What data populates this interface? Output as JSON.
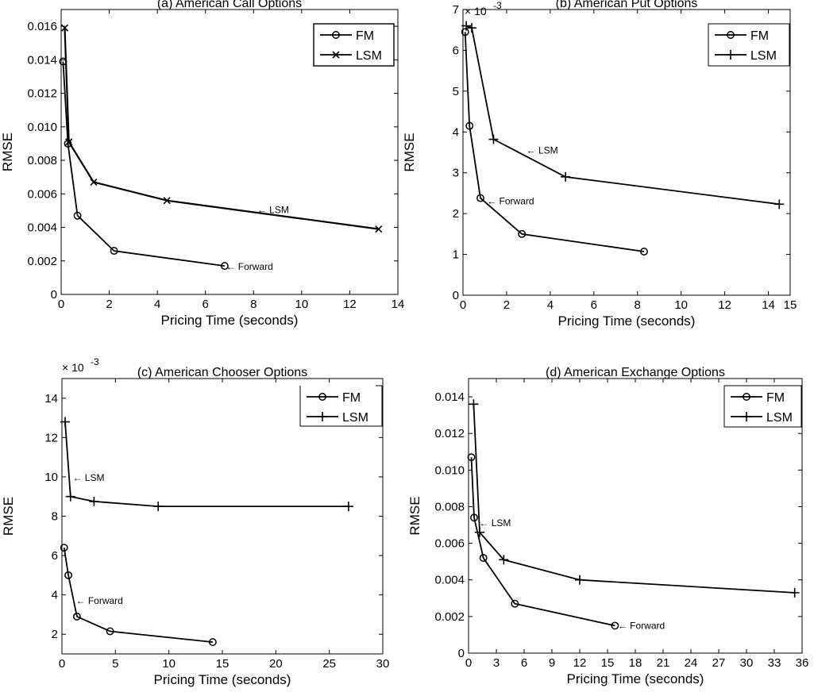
{
  "chart_data": [
    {
      "type": "line",
      "title": "(a) American Call Options",
      "xlabel": "Pricing Time (seconds)",
      "ylabel": "RMSE",
      "xlim": [
        0,
        14
      ],
      "ylim": [
        0,
        0.017
      ],
      "xticks": [
        "0",
        "2",
        "4",
        "6",
        "8",
        "10",
        "12",
        "14"
      ],
      "yticks": [
        "0",
        "0.002",
        "0.004",
        "0.006",
        "0.008",
        "0.010",
        "0.012",
        "0.014",
        "0.016"
      ],
      "legend_position": "top-right",
      "series": [
        {
          "name": "FM",
          "marker": "circle",
          "x": [
            0.08,
            0.28,
            0.68,
            2.2,
            6.8
          ],
          "y": [
            0.0139,
            0.009,
            0.0047,
            0.0026,
            0.0017
          ]
        },
        {
          "name": "LSM",
          "marker": "x",
          "x": [
            0.15,
            0.32,
            1.35,
            4.4,
            13.2
          ],
          "y": [
            0.0159,
            0.0091,
            0.0067,
            0.0056,
            0.0039
          ]
        }
      ],
      "annotations": [
        {
          "text": "← LSM",
          "x": 8.15,
          "y": 0.00505
        },
        {
          "text": "← Forward",
          "x": 6.85,
          "y": 0.00165
        }
      ]
    },
    {
      "type": "line",
      "title": "(b) American Put Options",
      "xlabel": "Pricing Time (seconds)",
      "ylabel": "RMSE",
      "exponent_label": "× 10",
      "exponent_power": "-3",
      "xlim": [
        0,
        15
      ],
      "ylim": [
        0,
        7
      ],
      "xticks": [
        "0",
        "2",
        "4",
        "6",
        "8",
        "10",
        "12",
        "14",
        "15"
      ],
      "yticks": [
        "0",
        "1",
        "2",
        "3",
        "4",
        "5",
        "6",
        "7"
      ],
      "legend_position": "top-right",
      "series": [
        {
          "name": "FM",
          "marker": "circle",
          "x": [
            0.1,
            0.3,
            0.8,
            2.7,
            8.3
          ],
          "y": [
            6.45,
            4.15,
            2.38,
            1.5,
            1.07
          ]
        },
        {
          "name": "LSM",
          "marker": "plus",
          "x": [
            0.15,
            0.4,
            1.4,
            4.7,
            14.5
          ],
          "y": [
            6.6,
            6.55,
            3.82,
            2.9,
            2.23
          ]
        }
      ],
      "annotations": [
        {
          "text": "← LSM",
          "x": 2.9,
          "y": 3.55
        },
        {
          "text": "← Forward",
          "x": 1.1,
          "y": 2.3
        }
      ]
    },
    {
      "type": "line",
      "title": "(c) American Chooser Options",
      "xlabel": "Pricing Time (seconds)",
      "ylabel": "RMSE",
      "exponent_label": "× 10",
      "exponent_power": "-3",
      "xlim": [
        0,
        30
      ],
      "ylim": [
        1,
        15
      ],
      "xticks": [
        "0",
        "5",
        "10",
        "15",
        "20",
        "25",
        "30"
      ],
      "yticks": [
        "2",
        "4",
        "6",
        "8",
        "10",
        "12",
        "14"
      ],
      "legend_position": "top-right",
      "series": [
        {
          "name": "FM",
          "marker": "circle",
          "x": [
            0.2,
            0.6,
            1.4,
            4.5,
            14.1
          ],
          "y": [
            6.4,
            5.0,
            2.9,
            2.15,
            1.6
          ]
        },
        {
          "name": "LSM",
          "marker": "plus",
          "x": [
            0.3,
            0.8,
            3.0,
            9.0,
            26.8
          ],
          "y": [
            12.8,
            9.0,
            8.75,
            8.5,
            8.5
          ]
        }
      ],
      "annotations": [
        {
          "text": "← LSM",
          "x": 1.0,
          "y": 9.95
        },
        {
          "text": "← Forward",
          "x": 1.3,
          "y": 3.7
        }
      ]
    },
    {
      "type": "line",
      "title": "(d) American Exchange Options",
      "xlabel": "Pricing Time (seconds)",
      "ylabel": "RMSE",
      "xlim": [
        0,
        36
      ],
      "ylim": [
        0,
        0.015
      ],
      "xticks": [
        "0",
        "3",
        "6",
        "9",
        "12",
        "15",
        "18",
        "21",
        "24",
        "27",
        "30",
        "33",
        "36"
      ],
      "yticks": [
        "0",
        "0.002",
        "0.004",
        "0.006",
        "0.008",
        "0.010",
        "0.012",
        "0.014"
      ],
      "legend_position": "top-right",
      "series": [
        {
          "name": "FM",
          "marker": "circle",
          "x": [
            0.3,
            0.6,
            1.6,
            5.0,
            15.8
          ],
          "y": [
            0.0107,
            0.0074,
            0.0052,
            0.0027,
            0.0015
          ]
        },
        {
          "name": "LSM",
          "marker": "plus",
          "x": [
            0.55,
            1.2,
            3.8,
            12.0,
            35.2
          ],
          "y": [
            0.0136,
            0.0066,
            0.0051,
            0.004,
            0.0033
          ]
        }
      ],
      "annotations": [
        {
          "text": "← LSM",
          "x": 1.15,
          "y": 0.0071
        },
        {
          "text": "← Forward",
          "x": 16.1,
          "y": 0.0015
        }
      ]
    }
  ]
}
